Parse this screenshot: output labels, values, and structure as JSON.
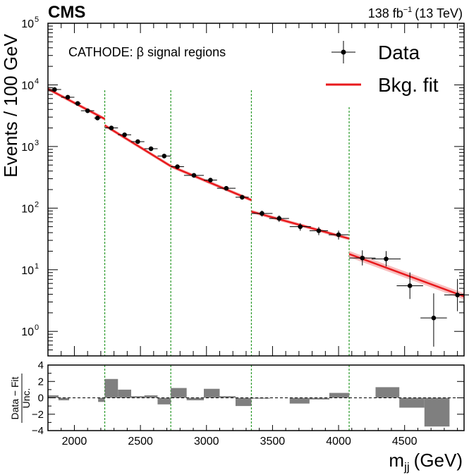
{
  "header": {
    "experiment": "CMS",
    "lumi_value": "138 fb",
    "lumi_exponent": "−1",
    "energy": "(13 TeV)"
  },
  "chart_data": [
    {
      "type": "scatter",
      "title": "CATHODE: β signal regions",
      "xlabel_main": "m",
      "xlabel_sub": "jj",
      "xlabel_unit": "(GeV)",
      "ylabel": "Events / 100 GeV",
      "yscale": "log",
      "xlim": [
        1800,
        4950
      ],
      "ylim": [
        0.4,
        100000
      ],
      "x_ticks": [
        2000,
        2500,
        3000,
        3500,
        4000,
        4500
      ],
      "y_ticks": [
        {
          "value": 1,
          "base": "10",
          "exp": "0"
        },
        {
          "value": 10,
          "base": "10",
          "exp": "1"
        },
        {
          "value": 100,
          "base": "10",
          "exp": "2"
        },
        {
          "value": 1000,
          "base": "10",
          "exp": "3"
        },
        {
          "value": 10000,
          "base": "10",
          "exp": "4"
        },
        {
          "value": 100000,
          "base": "10",
          "exp": "5"
        }
      ],
      "legend": {
        "position": "top-right",
        "data_label": "Data",
        "fit_label": "Bkg. fit"
      },
      "colors": {
        "data": "#000000",
        "fit": "#e8191c",
        "band": "#f5a3a3",
        "boundary": "#2a9a2a"
      },
      "signal_region_boundaries": [
        2230,
        2730,
        3340,
        4080
      ],
      "data": [
        {
          "x": 1850,
          "xerr": 50,
          "y": 8400
        },
        {
          "x": 1950,
          "xerr": 50,
          "y": 6300
        },
        {
          "x": 2025,
          "xerr": 25,
          "y": 5000
        },
        {
          "x": 2100,
          "xerr": 50,
          "y": 3800
        },
        {
          "x": 2175,
          "xerr": 25,
          "y": 2900
        },
        {
          "x": 2280,
          "xerr": 50,
          "y": 2000
        },
        {
          "x": 2380,
          "xerr": 50,
          "y": 1550
        },
        {
          "x": 2480,
          "xerr": 50,
          "y": 1200
        },
        {
          "x": 2580,
          "xerr": 50,
          "y": 920
        },
        {
          "x": 2680,
          "xerr": 50,
          "y": 700
        },
        {
          "x": 2780,
          "xerr": 50,
          "y": 470
        },
        {
          "x": 2905,
          "xerr": 75,
          "y": 340
        },
        {
          "x": 3030,
          "xerr": 50,
          "y": 285
        },
        {
          "x": 3150,
          "xerr": 70,
          "y": 210
        },
        {
          "x": 3270,
          "xerr": 50,
          "y": 150
        },
        {
          "x": 3420,
          "xerr": 80,
          "y": 82
        },
        {
          "x": 3550,
          "xerr": 75,
          "y": 68
        },
        {
          "x": 3710,
          "xerr": 80,
          "y": 50
        },
        {
          "x": 3850,
          "xerr": 70,
          "y": 43
        },
        {
          "x": 4000,
          "xerr": 75,
          "y": 37
        },
        {
          "x": 4180,
          "xerr": 100,
          "y": 15.5
        },
        {
          "x": 4360,
          "xerr": 110,
          "y": 15
        },
        {
          "x": 4540,
          "xerr": 100,
          "y": 5.5
        },
        {
          "x": 4720,
          "xerr": 100,
          "y": 1.65
        },
        {
          "x": 4900,
          "xerr": 100,
          "y": 3.9
        }
      ],
      "fit_segments": [
        {
          "x": [
            1800,
            2230
          ],
          "y": [
            8600,
            2800
          ]
        },
        {
          "x": [
            2230,
            2730
          ],
          "y": [
            2200,
            480
          ]
        },
        {
          "x": [
            2730,
            3340
          ],
          "y": [
            480,
            135
          ]
        },
        {
          "x": [
            3340,
            4080
          ],
          "y": [
            88,
            32
          ]
        },
        {
          "x": [
            4080,
            4950
          ],
          "y": [
            18,
            3.7
          ]
        }
      ]
    },
    {
      "type": "bar",
      "ylabel_numerator": "Data − Fit",
      "ylabel_denominator": "Unc.",
      "ylim": [
        -4,
        4
      ],
      "y_ticks": [
        -4,
        -2,
        0,
        2,
        4
      ],
      "bars": [
        {
          "x0": 1800,
          "x1": 1880,
          "value": 0.3
        },
        {
          "x0": 1880,
          "x1": 1960,
          "value": -0.3
        },
        {
          "x0": 2180,
          "x1": 2230,
          "value": -0.5
        },
        {
          "x0": 2230,
          "x1": 2330,
          "value": 2.3
        },
        {
          "x0": 2330,
          "x1": 2430,
          "value": 1.0
        },
        {
          "x0": 2430,
          "x1": 2530,
          "value": 0.2
        },
        {
          "x0": 2530,
          "x1": 2630,
          "value": 0.3
        },
        {
          "x0": 2630,
          "x1": 2730,
          "value": -0.8
        },
        {
          "x0": 2730,
          "x1": 2850,
          "value": 1.2
        },
        {
          "x0": 2850,
          "x1": 2980,
          "value": -0.3
        },
        {
          "x0": 2980,
          "x1": 3100,
          "value": 1.1
        },
        {
          "x0": 3100,
          "x1": 3220,
          "value": 0.2
        },
        {
          "x0": 3220,
          "x1": 3340,
          "value": -1.0
        },
        {
          "x0": 3340,
          "x1": 3480,
          "value": -0.1
        },
        {
          "x0": 3630,
          "x1": 3780,
          "value": -0.7
        },
        {
          "x0": 3780,
          "x1": 3930,
          "value": -0.2
        },
        {
          "x0": 3930,
          "x1": 4080,
          "value": 0.6
        },
        {
          "x0": 4280,
          "x1": 4460,
          "value": 1.3
        },
        {
          "x0": 4460,
          "x1": 4650,
          "value": -1.2
        },
        {
          "x0": 4650,
          "x1": 4840,
          "value": -3.5
        }
      ]
    }
  ]
}
